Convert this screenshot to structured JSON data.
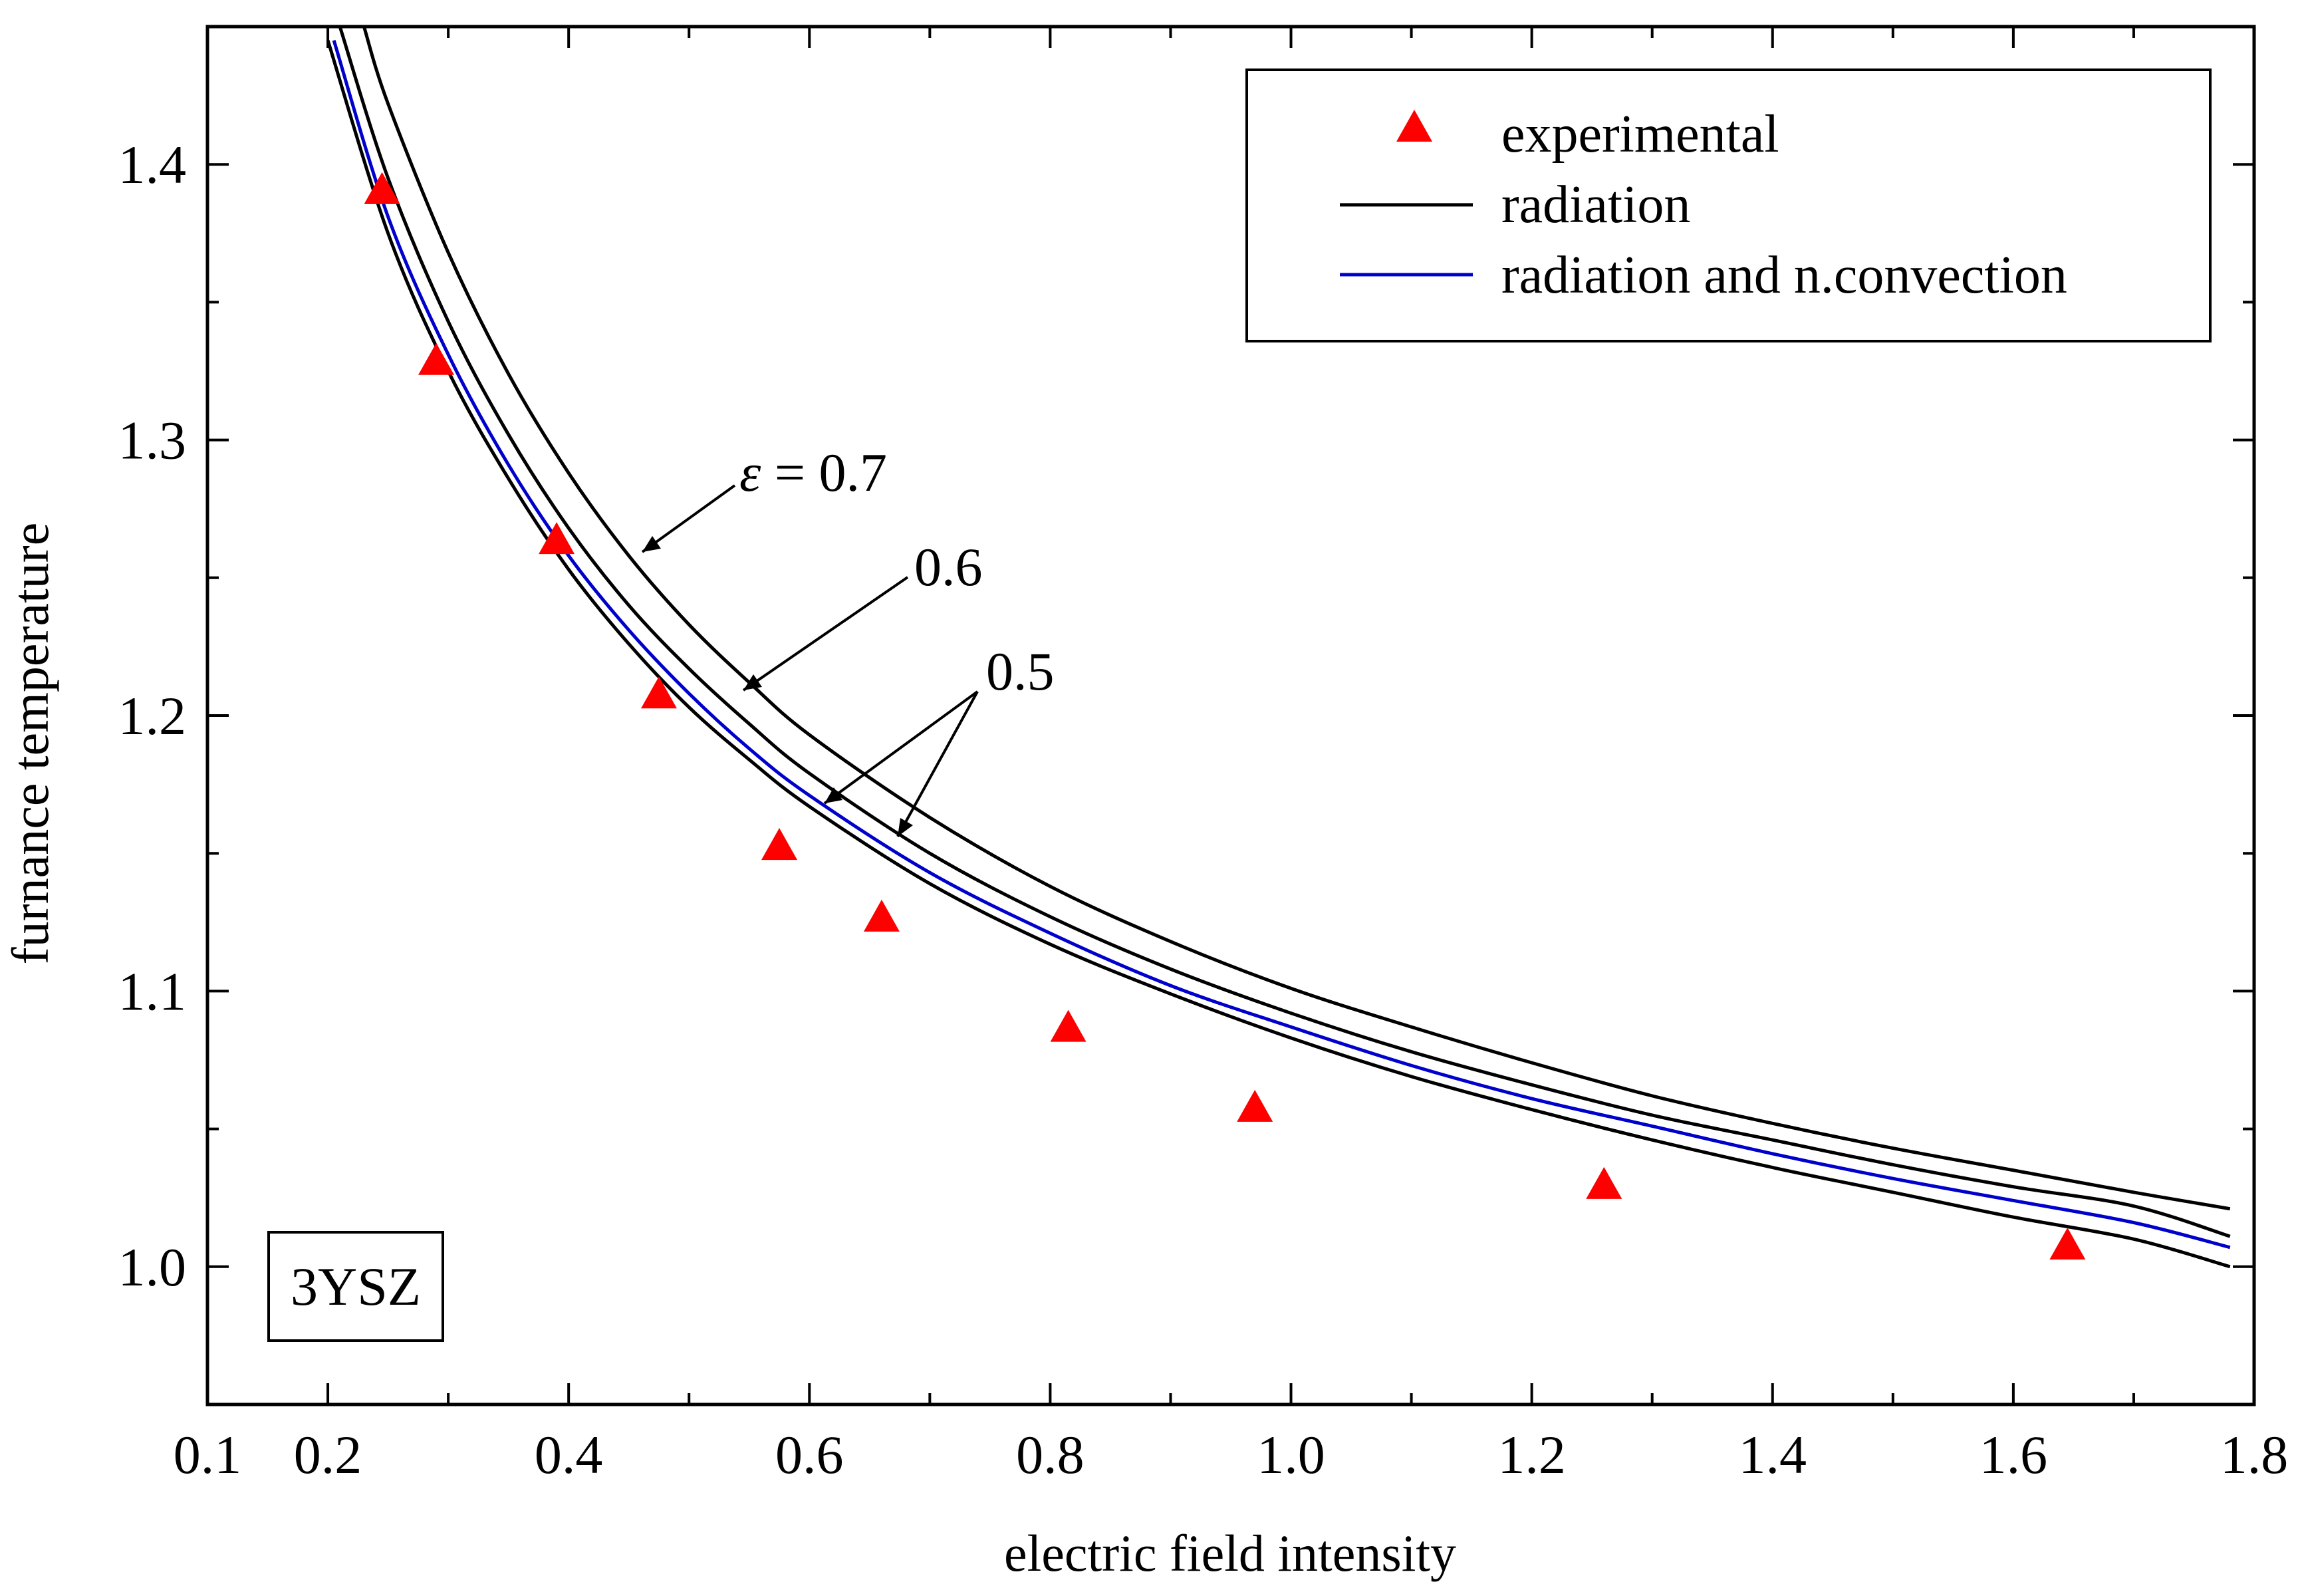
{
  "chart_data": {
    "type": "line",
    "xlabel": "electric field intensity",
    "ylabel": "furnance temperature",
    "xlim": [
      0.1,
      1.8
    ],
    "ylim": [
      0.95,
      1.45
    ],
    "xticks": [
      "0.1",
      "0.2",
      "0.4",
      "0.6",
      "0.8",
      "1.0",
      "1.2",
      "1.4",
      "1.6",
      "1.8"
    ],
    "yticks": [
      "1.0",
      "1.1",
      "1.2",
      "1.3",
      "1.4"
    ],
    "tag": "3YSZ",
    "legend": {
      "placement": "top-right",
      "entries": [
        "experimental",
        "radiation",
        "radiation and n.convection"
      ]
    },
    "colors": {
      "experimental": "#ff0000",
      "radiation": "#000000",
      "convection": "#0000cc"
    },
    "series": [
      {
        "name": "experimental",
        "style": "triangle-markers",
        "x": [
          0.245,
          0.29,
          0.39,
          0.475,
          0.575,
          0.66,
          0.815,
          0.97,
          1.26,
          1.645
        ],
        "y": [
          1.39,
          1.328,
          1.263,
          1.207,
          1.152,
          1.126,
          1.086,
          1.057,
          1.029,
          1.007
        ]
      },
      {
        "name": "radiation",
        "label": "ε = 0.7",
        "style": "line",
        "x": [
          0.23,
          0.25,
          0.3,
          0.35,
          0.4,
          0.45,
          0.5,
          0.55,
          0.6,
          0.7,
          0.8,
          0.9,
          1.0,
          1.1,
          1.2,
          1.3,
          1.4,
          1.5,
          1.6,
          1.7,
          1.78
        ],
        "y": [
          1.45,
          1.422,
          1.368,
          1.324,
          1.288,
          1.258,
          1.233,
          1.212,
          1.193,
          1.163,
          1.138,
          1.118,
          1.101,
          1.087,
          1.074,
          1.062,
          1.052,
          1.043,
          1.035,
          1.027,
          1.021
        ]
      },
      {
        "name": "radiation",
        "label": "0.6",
        "style": "line",
        "x": [
          0.21,
          0.25,
          0.3,
          0.35,
          0.4,
          0.45,
          0.5,
          0.55,
          0.6,
          0.7,
          0.8,
          0.9,
          1.0,
          1.1,
          1.2,
          1.3,
          1.4,
          1.5,
          1.6,
          1.7,
          1.78
        ],
        "y": [
          1.45,
          1.395,
          1.343,
          1.302,
          1.268,
          1.24,
          1.217,
          1.197,
          1.179,
          1.15,
          1.127,
          1.108,
          1.092,
          1.078,
          1.066,
          1.055,
          1.046,
          1.037,
          1.029,
          1.022,
          1.011
        ]
      },
      {
        "name": "radiation and n.convection",
        "label": "0.5",
        "style": "line",
        "x": [
          0.205,
          0.25,
          0.3,
          0.35,
          0.4,
          0.45,
          0.5,
          0.55,
          0.6,
          0.7,
          0.8,
          0.9,
          1.0,
          1.1,
          1.2,
          1.3,
          1.4,
          1.5,
          1.6,
          1.7,
          1.78
        ],
        "y": [
          1.445,
          1.381,
          1.331,
          1.291,
          1.258,
          1.231,
          1.208,
          1.188,
          1.171,
          1.143,
          1.121,
          1.102,
          1.087,
          1.073,
          1.061,
          1.051,
          1.041,
          1.032,
          1.024,
          1.016,
          1.007
        ]
      },
      {
        "name": "radiation",
        "label": "0.5",
        "style": "line",
        "x": [
          0.2,
          0.25,
          0.3,
          0.35,
          0.4,
          0.45,
          0.5,
          0.55,
          0.6,
          0.7,
          0.8,
          0.9,
          1.0,
          1.1,
          1.2,
          1.3,
          1.4,
          1.5,
          1.6,
          1.7,
          1.78
        ],
        "y": [
          1.445,
          1.375,
          1.325,
          1.286,
          1.253,
          1.226,
          1.203,
          1.184,
          1.167,
          1.139,
          1.117,
          1.099,
          1.083,
          1.069,
          1.057,
          1.046,
          1.036,
          1.027,
          1.018,
          1.01,
          1.0
        ]
      }
    ],
    "annotations": [
      {
        "prefix": "ε",
        "text": " = 0.7",
        "target_series": 1
      },
      {
        "text": "0.6",
        "target_series": 2
      },
      {
        "text": "0.5",
        "target_series": [
          3,
          4
        ]
      }
    ]
  }
}
